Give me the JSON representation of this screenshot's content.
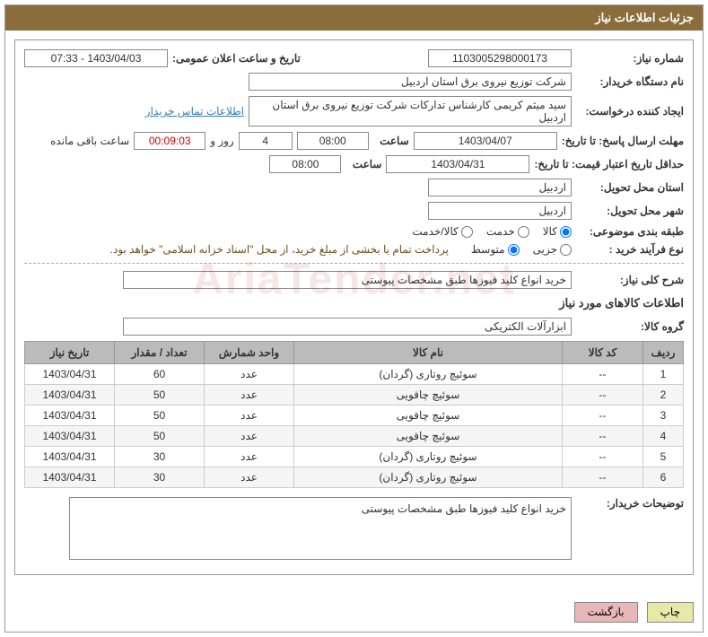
{
  "header": {
    "title": "جزئیات اطلاعات نیاز"
  },
  "fields": {
    "request_no_label": "شماره نیاز:",
    "request_no": "1103005298000173",
    "announce_label": "تاریخ و ساعت اعلان عمومی:",
    "announce_value": "1403/04/03 - 07:33",
    "buyer_org_label": "نام دستگاه خریدار:",
    "buyer_org": "شرکت توزیع نیروی برق استان اردبیل",
    "creator_label": "ایجاد کننده درخواست:",
    "creator": "سید میثم کریمی کارشناس تدارکات شرکت توزیع نیروی برق استان اردبیل",
    "contact_link": "اطلاعات تماس خریدار",
    "reply_deadline_label": "مهلت ارسال پاسخ: تا تاریخ:",
    "reply_date": "1403/04/07",
    "time_label": "ساعت",
    "reply_time": "08:00",
    "days_value": "4",
    "days_suffix": "روز و",
    "countdown": "00:09:03",
    "remain_label": "ساعت باقی مانده",
    "validity_label": "حداقل تاریخ اعتبار قیمت: تا تاریخ:",
    "validity_date": "1403/04/31",
    "validity_time": "08:00",
    "province_label": "استان محل تحویل:",
    "province": "اردبیل",
    "city_label": "شهر محل تحویل:",
    "city": "اردبیل",
    "category_label": "طبقه بندی موضوعی:",
    "cat_goods": "کالا",
    "cat_service": "خدمت",
    "cat_goods_service": "کالا/خدمت",
    "purchase_type_label": "نوع فرآیند خرید :",
    "pt_small": "جزیی",
    "pt_medium": "متوسط",
    "payment_note": "پرداخت تمام یا بخشی از مبلغ خرید، از محل \"اسناد خزانه اسلامی\" خواهد بود.",
    "general_desc_label": "شرح کلی نیاز:",
    "general_desc": "خرید انواع کلید فیوزها طبق مشخصات پیوستی",
    "goods_info_title": "اطلاعات کالاهای مورد نیاز",
    "goods_group_label": "گروه کالا:",
    "goods_group": "ابزارآلات الکتریکی",
    "buyer_notes_label": "توضیحات خریدار:",
    "buyer_notes": "خرید انواع کلید فیوزها طبق مشخصات پیوستی"
  },
  "table": {
    "headers": {
      "row": "ردیف",
      "code": "کد کالا",
      "name": "نام کالا",
      "unit": "واحد شمارش",
      "qty": "تعداد / مقدار",
      "date": "تاریخ نیاز"
    },
    "rows": [
      {
        "n": "1",
        "code": "--",
        "name": "سوئیچ روتاری (گردان)",
        "unit": "عدد",
        "qty": "60",
        "date": "1403/04/31"
      },
      {
        "n": "2",
        "code": "--",
        "name": "سوئیچ چاقویی",
        "unit": "عدد",
        "qty": "50",
        "date": "1403/04/31"
      },
      {
        "n": "3",
        "code": "--",
        "name": "سوئیچ چاقویی",
        "unit": "عدد",
        "qty": "50",
        "date": "1403/04/31"
      },
      {
        "n": "4",
        "code": "--",
        "name": "سوئیچ چاقویی",
        "unit": "عدد",
        "qty": "50",
        "date": "1403/04/31"
      },
      {
        "n": "5",
        "code": "--",
        "name": "سوئیچ روتاری (گردان)",
        "unit": "عدد",
        "qty": "30",
        "date": "1403/04/31"
      },
      {
        "n": "6",
        "code": "--",
        "name": "سوئیچ روتاری (گردان)",
        "unit": "عدد",
        "qty": "30",
        "date": "1403/04/31"
      }
    ]
  },
  "buttons": {
    "print": "چاپ",
    "back": "بازگشت"
  },
  "watermark": "AriaTender.net",
  "colors": {
    "header_bg": "#8a6d3b",
    "th_bg": "#bbbbbb",
    "border": "#999999"
  }
}
